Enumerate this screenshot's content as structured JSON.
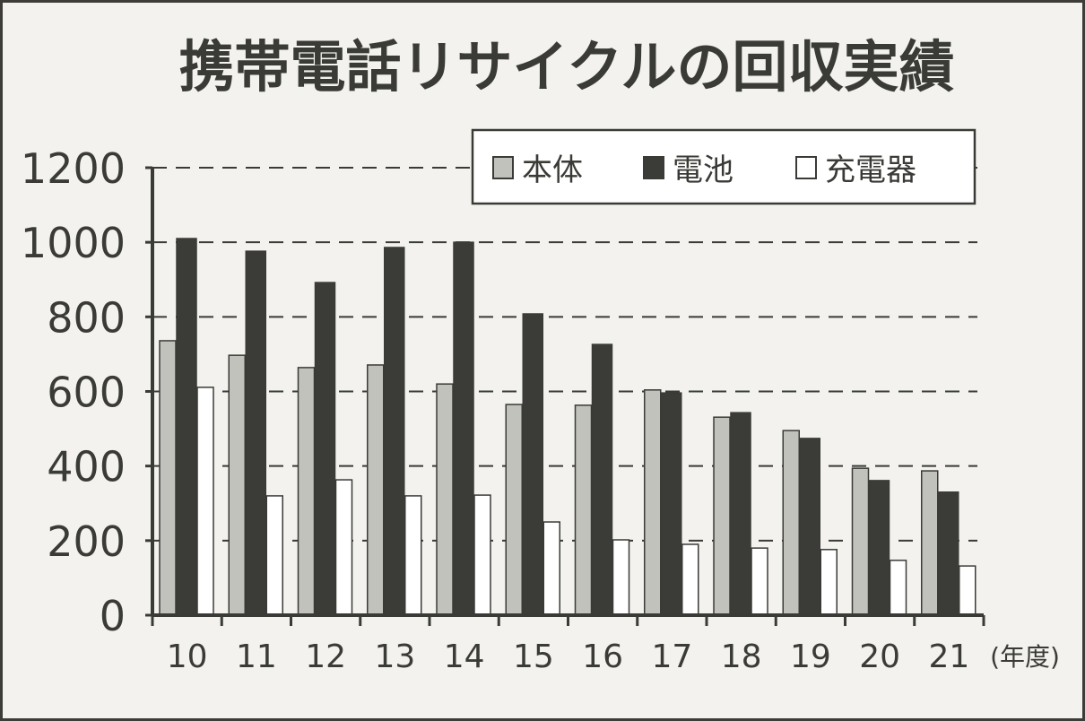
{
  "chart_data": {
    "type": "bar",
    "title": "携帯電話リサイクルの回収実績",
    "xlabel": "(年度)",
    "ylabel": "",
    "ylim": [
      0,
      1200
    ],
    "yticks": [
      "0",
      "200",
      "400",
      "600",
      "800",
      "1000",
      "1200"
    ],
    "grid": true,
    "legend_position": "top-right",
    "categories": [
      "10",
      "11",
      "12",
      "13",
      "14",
      "15",
      "16",
      "17",
      "18",
      "19",
      "20",
      "21"
    ],
    "series": [
      {
        "name": "本体",
        "color": "#c2c2bd",
        "values": [
          736,
          697,
          664,
          671,
          620,
          565,
          563,
          604,
          531,
          495,
          394,
          387
        ]
      },
      {
        "name": "電池",
        "color": "#3b3b37",
        "values": [
          1010,
          976,
          892,
          986,
          1000,
          808,
          726,
          596,
          543,
          474,
          361,
          330
        ]
      },
      {
        "name": "充電器",
        "color": "#ffffff",
        "values": [
          611,
          320,
          363,
          320,
          322,
          250,
          202,
          190,
          180,
          176,
          147,
          132
        ]
      }
    ]
  }
}
